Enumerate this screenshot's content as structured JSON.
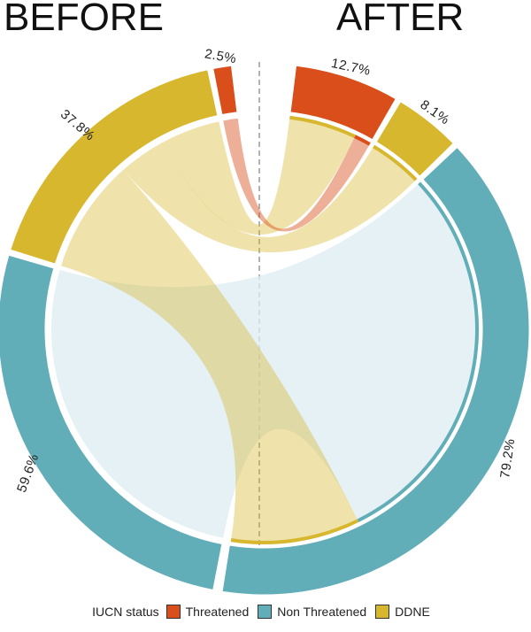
{
  "chart_data": {
    "type": "chord",
    "headers": {
      "left": "BEFORE",
      "right": "AFTER"
    },
    "legend": {
      "title": "IUCN status",
      "items": [
        {
          "label": "Threatened",
          "color": "#d94e1a"
        },
        {
          "label": "Non Threatened",
          "color": "#62aeb8"
        },
        {
          "label": "DDNE",
          "color": "#d7b72d"
        }
      ]
    },
    "before": [
      {
        "status": "Non Threatened",
        "percent": 59.6,
        "label": "59.6%"
      },
      {
        "status": "DDNE",
        "percent": 37.8,
        "label": "37.8%"
      },
      {
        "status": "Threatened",
        "percent": 2.5,
        "label": "2.5%"
      }
    ],
    "after": [
      {
        "status": "Threatened",
        "percent": 12.7,
        "label": "12.7%"
      },
      {
        "status": "DDNE",
        "percent": 8.1,
        "label": "8.1%"
      },
      {
        "status": "Non Threatened",
        "percent": 79.2,
        "label": "79.2%"
      }
    ],
    "flows": [
      {
        "from": "Non Threatened",
        "to": "Non Threatened",
        "value": 59.6
      },
      {
        "from": "DDNE",
        "to": "Threatened",
        "value": 10.2
      },
      {
        "from": "DDNE",
        "to": "DDNE",
        "value": 8.1
      },
      {
        "from": "DDNE",
        "to": "Non Threatened",
        "value": 19.5
      },
      {
        "from": "Threatened",
        "to": "Threatened",
        "value": 2.5
      }
    ]
  }
}
